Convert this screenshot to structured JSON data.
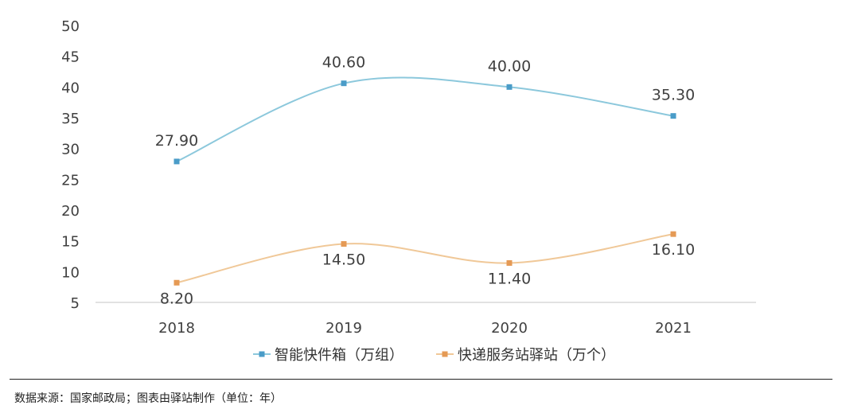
{
  "chart_data": {
    "type": "line",
    "categories": [
      "2018",
      "2019",
      "2020",
      "2021"
    ],
    "series": [
      {
        "name": "智能快件箱（万组）",
        "values": [
          27.9,
          40.6,
          40.0,
          35.3
        ],
        "labels": [
          "27.90",
          "40.60",
          "40.00",
          "35.30"
        ],
        "color": "#8cc8dc",
        "marker_color": "#4a9cc8"
      },
      {
        "name": "快递服务站驿站（万个）",
        "values": [
          8.2,
          14.5,
          11.4,
          16.1
        ],
        "labels": [
          "8.20",
          "14.50",
          "11.40",
          "16.10"
        ],
        "color": "#f0c898",
        "marker_color": "#e59a55"
      }
    ],
    "ylim": [
      5,
      50
    ],
    "yticks": [
      "5",
      "10",
      "15",
      "20",
      "25",
      "30",
      "35",
      "40",
      "45",
      "50"
    ],
    "grid": false,
    "legend_position": "bottom"
  },
  "source_note": "数据来源：国家邮政局；图表由驿站制作（单位：年）"
}
